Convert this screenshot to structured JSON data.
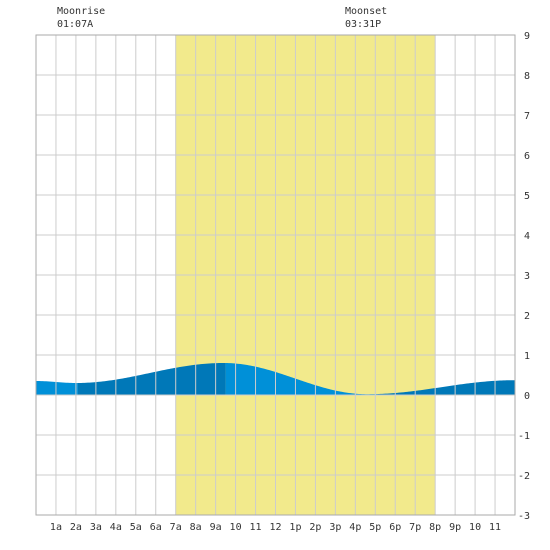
{
  "colors": {
    "background": "#ffffff",
    "grid": "#cccccc",
    "daylight": "#f2ea8c",
    "tide_light": "#0090d8",
    "tide_dark": "#0078b8",
    "text": "#333333"
  },
  "moon": {
    "rise_label": "Moonrise",
    "rise_time": "01:07A",
    "set_label": "Moonset",
    "set_time": "03:31P"
  },
  "chart_data": {
    "type": "area",
    "title": "",
    "xlabel": "",
    "ylabel": "",
    "grid": true,
    "xlim": [
      0,
      24
    ],
    "ylim": [
      -3,
      9
    ],
    "x_ticks": [
      {
        "x": 1,
        "label": "1a"
      },
      {
        "x": 2,
        "label": "2a"
      },
      {
        "x": 3,
        "label": "3a"
      },
      {
        "x": 4,
        "label": "4a"
      },
      {
        "x": 5,
        "label": "5a"
      },
      {
        "x": 6,
        "label": "6a"
      },
      {
        "x": 7,
        "label": "7a"
      },
      {
        "x": 8,
        "label": "8a"
      },
      {
        "x": 9,
        "label": "9a"
      },
      {
        "x": 10,
        "label": "10"
      },
      {
        "x": 11,
        "label": "11"
      },
      {
        "x": 12,
        "label": "12"
      },
      {
        "x": 13,
        "label": "1p"
      },
      {
        "x": 14,
        "label": "2p"
      },
      {
        "x": 15,
        "label": "3p"
      },
      {
        "x": 16,
        "label": "4p"
      },
      {
        "x": 17,
        "label": "5p"
      },
      {
        "x": 18,
        "label": "6p"
      },
      {
        "x": 19,
        "label": "7p"
      },
      {
        "x": 20,
        "label": "8p"
      },
      {
        "x": 21,
        "label": "9p"
      },
      {
        "x": 22,
        "label": "10"
      },
      {
        "x": 23,
        "label": "11"
      }
    ],
    "y_ticks": [
      "-3",
      "-2",
      "-1",
      "0",
      "1",
      "2",
      "3",
      "4",
      "5",
      "6",
      "7",
      "8",
      "9"
    ],
    "daylight": {
      "start": 7,
      "end": 20
    },
    "moonrise_hour": 1.117,
    "moonset_hour": 15.517,
    "tide_turning_points": [
      {
        "x": 0,
        "y": 0.35
      },
      {
        "x": 2.0,
        "y": 0.3
      },
      {
        "x": 9.4,
        "y": 0.8
      },
      {
        "x": 16.6,
        "y": 0.02
      },
      {
        "x": 24,
        "y": 0.37
      }
    ],
    "shade_segments": [
      {
        "from": 0,
        "to": 2.1,
        "tone": "light"
      },
      {
        "from": 2.1,
        "to": 9.5,
        "tone": "dark"
      },
      {
        "from": 9.5,
        "to": 17.1,
        "tone": "light"
      },
      {
        "from": 17.1,
        "to": 24,
        "tone": "dark"
      }
    ]
  }
}
